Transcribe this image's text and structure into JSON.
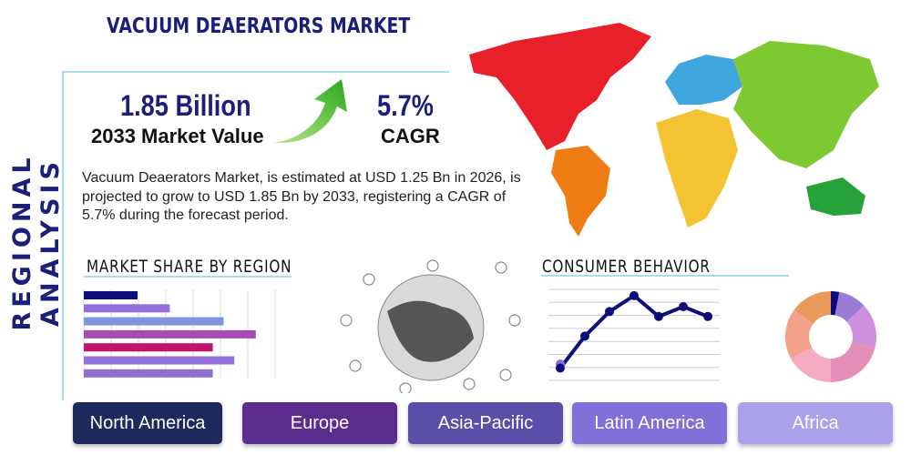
{
  "side_title": "REGIONAL ANALYSIS",
  "title": "VACUUM DEAERATORS MARKET",
  "market_value": {
    "value": "1.85 Billion",
    "label": "2033 Market Value"
  },
  "cagr": {
    "value": "5.7%",
    "label": "CAGR"
  },
  "description": "Vacuum Deaerators Market, is estimated at USD 1.25 Bn in 2026, is projected to grow to USD 1.85 Bn by 2033, registering a CAGR of 5.7% during the forecast period.",
  "market_share": {
    "heading": "MARKET SHARE BY REGION",
    "values": [
      2.0,
      3.2,
      5.2,
      6.4,
      4.8,
      5.6,
      4.8
    ],
    "colors": [
      "#0d0d7a",
      "#9370db",
      "#7f94dc",
      "#a54db2",
      "#c2116e",
      "#9370db",
      "#9070cf"
    ]
  },
  "consumer": {
    "heading": "CONSUMER BEHAVIOR",
    "line": [
      1.0,
      3.6,
      5.6,
      6.9,
      5.2,
      6.0,
      5.2
    ],
    "donut": [
      3,
      10,
      16,
      21,
      17,
      18,
      15
    ],
    "donut_colors": [
      "#0d0d7a",
      "#9b7bd6",
      "#cf8fdd",
      "#e58fb8",
      "#f5aabf",
      "#f3a08c",
      "#e99a5a"
    ]
  },
  "regions": [
    "North America",
    "Europe",
    "Asia-Pacific",
    "Latin America",
    "Africa"
  ],
  "region_colors": [
    "#1e2a5e",
    "#5b2d8e",
    "#5a4fa8",
    "#8070d8",
    "#a9a2ea"
  ],
  "map_colors": {
    "north_america": "#e8202a",
    "south_america": "#f07d14",
    "europe": "#3fa6e0",
    "asia": "#7ec832",
    "africa": "#f3c334",
    "oceania": "#27a23a"
  }
}
